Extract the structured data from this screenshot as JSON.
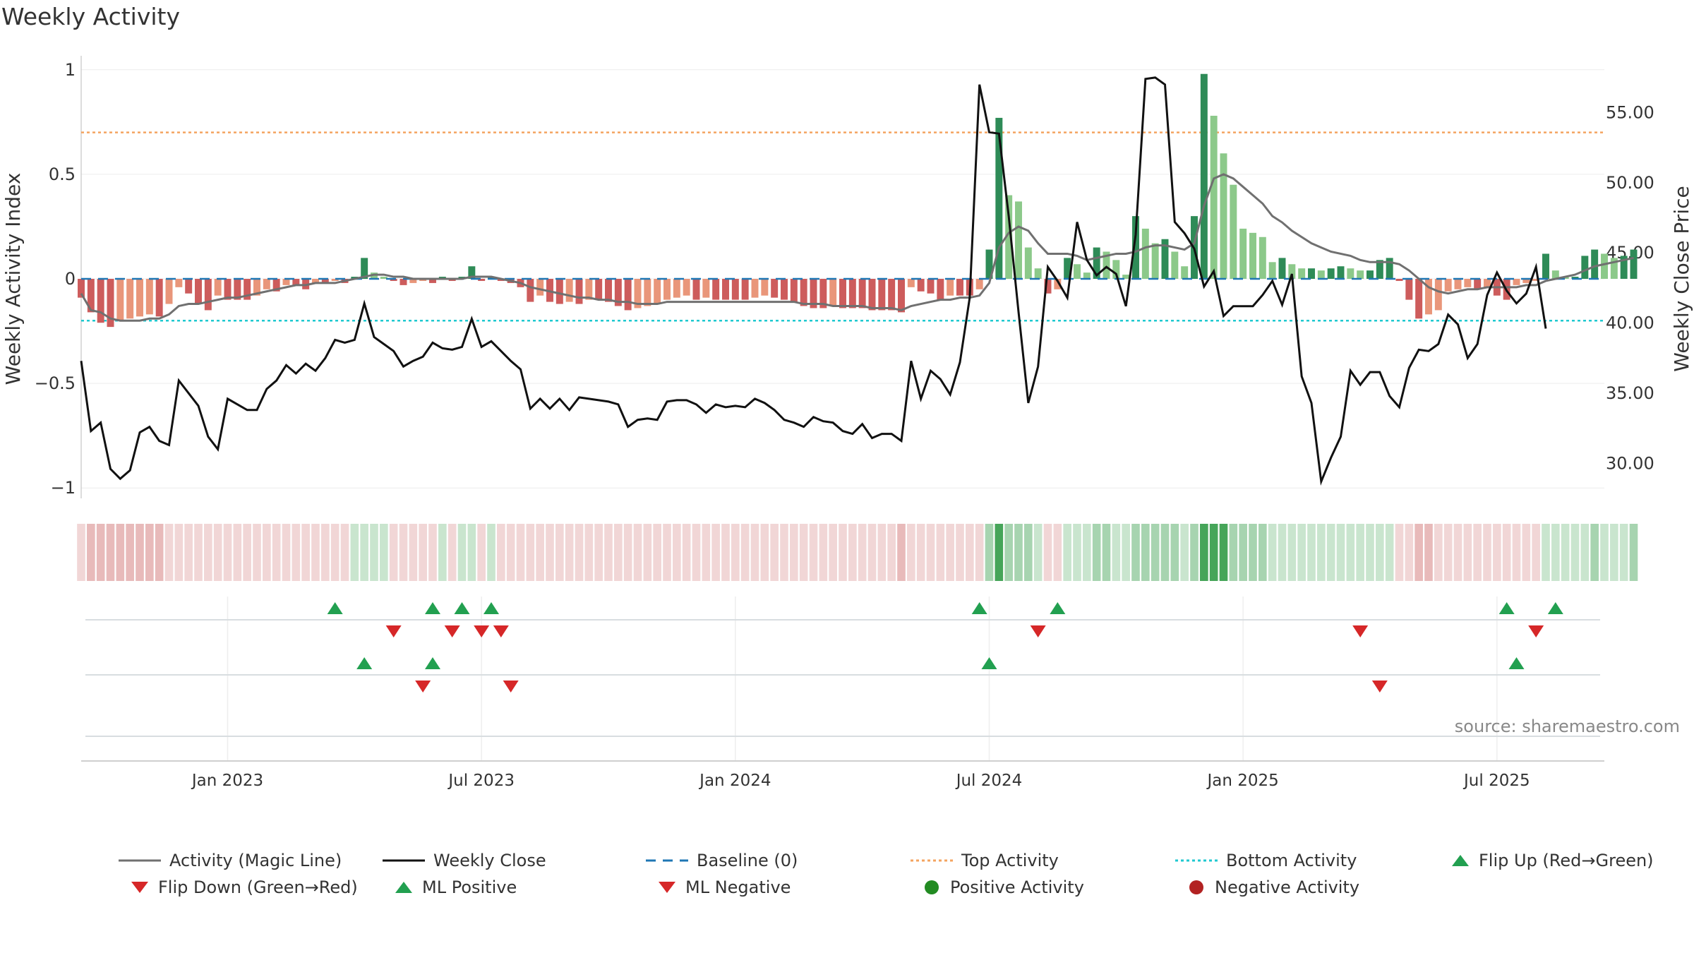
{
  "title": "Weekly Activity",
  "source_text": "source: sharemaestro.com",
  "colors": {
    "green_dark": "#2e8b57",
    "green_light": "#8cc98a",
    "red_dark": "#cd5c5c",
    "red_light": "#e9967a",
    "magic_line": "#707070",
    "close_line": "#111111",
    "baseline": "#1f77b4",
    "top_line": "#f4a460",
    "bottom_line": "#20c9d0",
    "marker_up": "#22a050",
    "marker_down": "#d62728"
  },
  "chart_data": {
    "type": "bar",
    "title": "Weekly Activity",
    "ylabel": "Weekly Activity Index",
    "y2label": "Weekly Close Price",
    "ylim": [
      -1.05,
      1.05
    ],
    "y2lim": [
      27.5,
      58.8
    ],
    "yticks": [
      1,
      0.5,
      0,
      -0.5,
      -1
    ],
    "ytick_labels": [
      "1",
      "0.5",
      "0",
      "−0.5",
      "−1"
    ],
    "y2ticks": [
      55,
      50,
      45,
      40,
      35,
      30
    ],
    "y2tick_labels": [
      "55.00",
      "50.00",
      "45.00",
      "40.00",
      "35.00",
      "30.00"
    ],
    "x_range_weeks": [
      0,
      156
    ],
    "xticks": [
      {
        "label": "Jan 2023",
        "week": 15
      },
      {
        "label": "Jul 2023",
        "week": 41
      },
      {
        "label": "Jan 2024",
        "week": 67
      },
      {
        "label": "Jul 2024",
        "week": 93
      },
      {
        "label": "Jan 2025",
        "week": 119
      },
      {
        "label": "Jul 2025",
        "week": 145
      }
    ],
    "top_activity": 0.7,
    "bottom_activity": -0.2,
    "baseline": 0,
    "activity": [
      -0.09,
      -0.16,
      -0.21,
      -0.23,
      -0.2,
      -0.19,
      -0.18,
      -0.17,
      -0.18,
      -0.12,
      -0.04,
      -0.07,
      -0.12,
      -0.15,
      -0.08,
      -0.1,
      -0.1,
      -0.1,
      -0.08,
      -0.05,
      -0.06,
      -0.03,
      -0.03,
      -0.05,
      -0.02,
      -0.02,
      -0.01,
      -0.02,
      0.01,
      0.1,
      0.03,
      0.01,
      -0.01,
      -0.03,
      -0.02,
      -0.01,
      -0.02,
      0.01,
      -0.01,
      0.01,
      0.06,
      -0.01,
      0.01,
      -0.01,
      -0.02,
      -0.04,
      -0.11,
      -0.08,
      -0.11,
      -0.12,
      -0.11,
      -0.12,
      -0.1,
      -0.1,
      -0.11,
      -0.13,
      -0.15,
      -0.14,
      -0.13,
      -0.12,
      -0.1,
      -0.09,
      -0.08,
      -0.1,
      -0.09,
      -0.1,
      -0.1,
      -0.1,
      -0.1,
      -0.09,
      -0.08,
      -0.09,
      -0.1,
      -0.11,
      -0.13,
      -0.14,
      -0.14,
      -0.13,
      -0.14,
      -0.14,
      -0.14,
      -0.15,
      -0.15,
      -0.15,
      -0.16,
      -0.04,
      -0.06,
      -0.07,
      -0.1,
      -0.08,
      -0.08,
      -0.08,
      -0.05,
      0.14,
      0.77,
      0.4,
      0.37,
      0.15,
      0.05,
      -0.07,
      -0.05,
      0.1,
      0.07,
      0.03,
      0.15,
      0.13,
      0.09,
      0.02,
      0.3,
      0.24,
      0.17,
      0.19,
      0.13,
      0.06,
      0.3,
      0.98,
      0.78,
      0.6,
      0.45,
      0.24,
      0.22,
      0.2,
      0.08,
      0.1,
      0.07,
      0.05,
      0.05,
      0.04,
      0.05,
      0.06,
      0.05,
      0.04,
      0.04,
      0.09,
      0.1,
      -0.01,
      -0.1,
      -0.19,
      -0.17,
      -0.15,
      -0.06,
      -0.05,
      -0.04,
      -0.05,
      -0.04,
      -0.08,
      -0.1,
      -0.03,
      -0.02,
      -0.01,
      0.12,
      0.04,
      0.01,
      0.01,
      0.11,
      0.14,
      0.12,
      0.1,
      0.11,
      0.14
    ],
    "magic_line": [
      -0.07,
      -0.15,
      -0.16,
      -0.19,
      -0.2,
      -0.2,
      -0.2,
      -0.19,
      -0.19,
      -0.17,
      -0.13,
      -0.12,
      -0.12,
      -0.11,
      -0.1,
      -0.09,
      -0.09,
      -0.08,
      -0.07,
      -0.06,
      -0.05,
      -0.04,
      -0.03,
      -0.03,
      -0.02,
      -0.02,
      -0.02,
      -0.01,
      0.0,
      0.01,
      0.02,
      0.02,
      0.01,
      0.01,
      0.0,
      0.0,
      0.0,
      0.0,
      0.0,
      0.0,
      0.01,
      0.01,
      0.01,
      0.0,
      -0.01,
      -0.02,
      -0.04,
      -0.05,
      -0.06,
      -0.07,
      -0.08,
      -0.09,
      -0.09,
      -0.1,
      -0.1,
      -0.11,
      -0.11,
      -0.12,
      -0.12,
      -0.12,
      -0.11,
      -0.11,
      -0.11,
      -0.11,
      -0.11,
      -0.11,
      -0.11,
      -0.11,
      -0.11,
      -0.11,
      -0.11,
      -0.11,
      -0.11,
      -0.11,
      -0.12,
      -0.12,
      -0.12,
      -0.13,
      -0.13,
      -0.13,
      -0.13,
      -0.14,
      -0.14,
      -0.14,
      -0.15,
      -0.13,
      -0.12,
      -0.11,
      -0.1,
      -0.1,
      -0.09,
      -0.09,
      -0.08,
      -0.02,
      0.15,
      0.22,
      0.25,
      0.23,
      0.17,
      0.12,
      0.12,
      0.12,
      0.11,
      0.09,
      0.1,
      0.11,
      0.12,
      0.12,
      0.13,
      0.15,
      0.16,
      0.16,
      0.15,
      0.14,
      0.17,
      0.35,
      0.48,
      0.5,
      0.48,
      0.44,
      0.4,
      0.36,
      0.3,
      0.27,
      0.23,
      0.2,
      0.17,
      0.15,
      0.13,
      0.12,
      0.11,
      0.09,
      0.08,
      0.08,
      0.08,
      0.07,
      0.04,
      0.0,
      -0.04,
      -0.06,
      -0.07,
      -0.06,
      -0.05,
      -0.05,
      -0.04,
      -0.04,
      -0.04,
      -0.04,
      -0.03,
      -0.03,
      -0.01,
      0.0,
      0.01,
      0.02,
      0.04,
      0.06,
      0.07,
      0.08,
      0.09,
      0.1
    ],
    "weekly_close": [
      37.3,
      32.3,
      32.9,
      29.6,
      28.9,
      29.5,
      32.2,
      32.6,
      31.6,
      31.3,
      35.9,
      35.0,
      34.1,
      31.9,
      31.0,
      34.6,
      34.2,
      33.8,
      33.8,
      35.3,
      35.9,
      37.0,
      36.4,
      37.1,
      36.6,
      37.5,
      38.8,
      38.6,
      38.8,
      41.4,
      39.0,
      38.5,
      38.0,
      36.9,
      37.3,
      37.6,
      38.6,
      38.2,
      38.1,
      38.3,
      40.3,
      38.3,
      38.7,
      38.0,
      37.3,
      36.7,
      33.9,
      34.6,
      33.9,
      34.6,
      33.8,
      34.7,
      34.6,
      34.5,
      34.4,
      34.2,
      32.6,
      33.1,
      33.2,
      33.1,
      34.4,
      34.5,
      34.5,
      34.2,
      33.6,
      34.2,
      34.0,
      34.1,
      34.0,
      34.6,
      34.3,
      33.8,
      33.1,
      32.9,
      32.6,
      33.3,
      33.0,
      32.9,
      32.3,
      32.1,
      32.8,
      31.8,
      32.1,
      32.1,
      31.6,
      37.3,
      34.6,
      36.6,
      36.0,
      34.9,
      37.2,
      41.8,
      57.0,
      53.6,
      53.5,
      47.6,
      40.8,
      34.3,
      36.9,
      44.0,
      43.0,
      41.8,
      47.2,
      44.5,
      43.4,
      44.0,
      43.5,
      41.2,
      46.3,
      57.4,
      57.5,
      57.0,
      47.2,
      46.4,
      45.3,
      42.6,
      43.7,
      40.5,
      41.2,
      41.2,
      41.2,
      42.0,
      43.0,
      41.3,
      43.5,
      36.2,
      34.3,
      28.7,
      30.4,
      31.9,
      36.6,
      35.6,
      36.5,
      36.5,
      34.8,
      34.0,
      36.8,
      38.1,
      38.0,
      38.5,
      40.6,
      39.9,
      37.5,
      38.5,
      42.0,
      43.6,
      42.3,
      41.4,
      42.1,
      44.0,
      39.6
    ],
    "heat_strip": "one cell per week, colored by activity",
    "marker_rows": [
      {
        "name": "Flip Up (Red→Green)",
        "row": 1,
        "shape": "triangle-up",
        "weeks": [
          26,
          36,
          39,
          42,
          92,
          100,
          146,
          151
        ]
      },
      {
        "name": "Flip Down (Green→Red)",
        "row": 1,
        "shape": "triangle-down",
        "weeks": [
          32,
          38,
          41,
          43,
          98,
          131,
          149
        ]
      },
      {
        "name": "ML Positive",
        "row": 2,
        "shape": "triangle-up",
        "weeks": [
          29,
          36,
          93,
          147
        ]
      },
      {
        "name": "ML Negative",
        "row": 2,
        "shape": "triangle-down",
        "weeks": [
          35,
          44,
          133
        ]
      },
      {
        "name": "Positive Activity",
        "row": 3,
        "shape": "circle",
        "weeks": []
      },
      {
        "name": "Negative Activity",
        "row": 3,
        "shape": "circle",
        "weeks": []
      }
    ]
  },
  "legend": [
    {
      "label": "Activity (Magic Line)",
      "key": "magic"
    },
    {
      "label": "Weekly Close",
      "key": "close"
    },
    {
      "label": "Baseline (0)",
      "key": "baseline"
    },
    {
      "label": "Top Activity",
      "key": "top"
    },
    {
      "label": "Bottom Activity",
      "key": "bottom"
    },
    {
      "label": "Flip Up (Red→Green)",
      "key": "flipup"
    },
    {
      "label": "Flip Down (Green→Red)",
      "key": "flipdown"
    },
    {
      "label": "ML Positive",
      "key": "mlpos"
    },
    {
      "label": "ML Negative",
      "key": "mlneg"
    },
    {
      "label": "Positive Activity",
      "key": "posact"
    },
    {
      "label": "Negative Activity",
      "key": "negact"
    }
  ]
}
